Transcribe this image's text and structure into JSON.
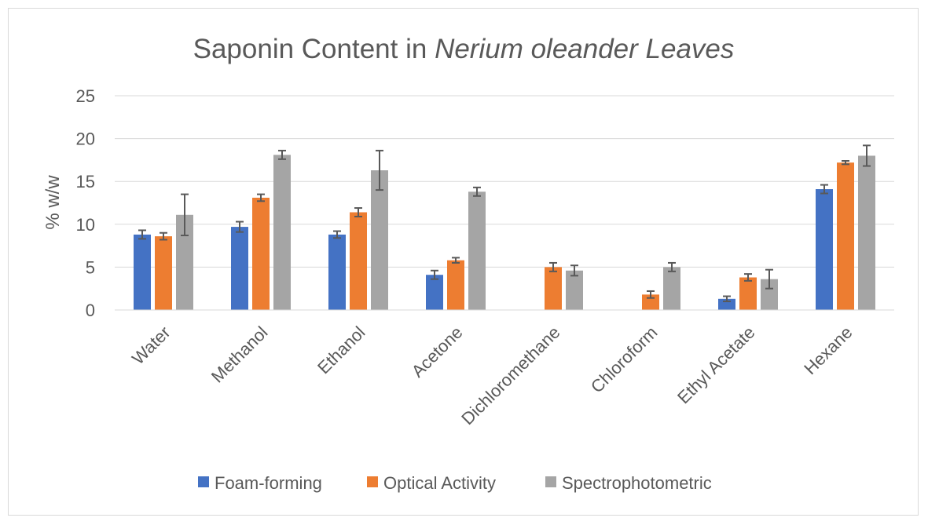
{
  "chart_data": {
    "type": "bar",
    "title_prefix": "Saponin Content in ",
    "title_italic": "Nerium oleander Leaves",
    "xlabel": "",
    "ylabel": "% w/w",
    "ylim": [
      0,
      25
    ],
    "yticks": [
      0,
      5,
      10,
      15,
      20,
      25
    ],
    "grid": true,
    "legend_position": "bottom",
    "categories": [
      "Water",
      "Methanol",
      "Ethanol",
      "Acetone",
      "Dichloromethane",
      "Chloroform",
      "Ethyl Acetate",
      "Hexane"
    ],
    "series": [
      {
        "name": "Foam-forming",
        "color": "#4472C4",
        "values": [
          8.8,
          9.7,
          8.8,
          4.1,
          null,
          null,
          1.3,
          14.1
        ],
        "errors": [
          0.5,
          0.6,
          0.4,
          0.5,
          null,
          null,
          0.3,
          0.5
        ]
      },
      {
        "name": "Optical Activity",
        "color": "#ED7D31",
        "values": [
          8.6,
          13.1,
          11.4,
          5.8,
          5.0,
          1.8,
          3.8,
          17.2
        ],
        "errors": [
          0.4,
          0.4,
          0.5,
          0.3,
          0.5,
          0.4,
          0.4,
          0.2
        ]
      },
      {
        "name": "Spectrophotometric",
        "color": "#A5A5A5",
        "values": [
          11.1,
          18.1,
          16.3,
          13.8,
          4.6,
          5.0,
          3.6,
          18.0
        ],
        "errors": [
          2.4,
          0.5,
          2.3,
          0.5,
          0.6,
          0.5,
          1.1,
          1.2
        ]
      }
    ]
  }
}
